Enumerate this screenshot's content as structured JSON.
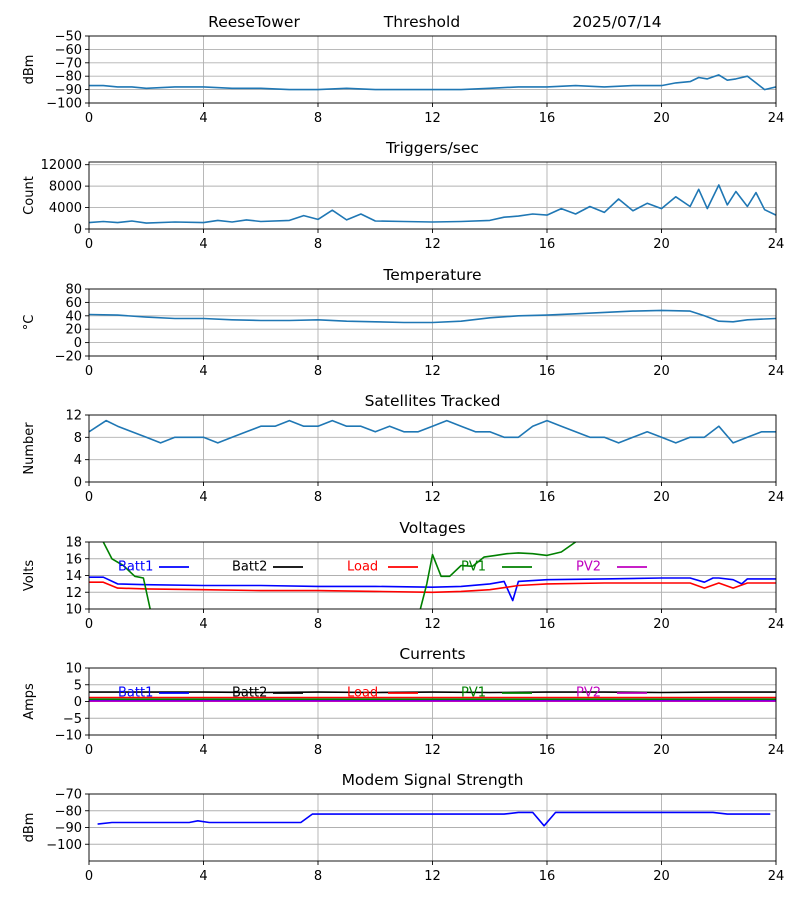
{
  "header": {
    "station": "ReeseTower",
    "mode": "Threshold",
    "date": "2025/07/14"
  },
  "chart_data": [
    {
      "id": "threshold",
      "type": "line",
      "title": "",
      "ylabel": "dBm",
      "xlim": [
        0,
        24
      ],
      "ylim": [
        -100,
        -50
      ],
      "xticks": [
        0,
        4,
        8,
        12,
        16,
        20,
        24
      ],
      "yticks": [
        -100,
        -90,
        -80,
        -70,
        -60,
        -50
      ],
      "grid": true,
      "series": [
        {
          "color": "#1f77b4",
          "x": [
            0,
            0.5,
            1,
            1.5,
            2,
            3,
            4,
            5,
            6,
            7,
            8,
            9,
            10,
            11,
            12,
            13,
            14,
            15,
            16,
            17,
            18,
            19,
            20,
            20.5,
            21,
            21.3,
            21.6,
            22,
            22.3,
            22.6,
            23,
            23.3,
            23.6,
            24
          ],
          "y": [
            -87,
            -87,
            -88,
            -88,
            -89,
            -88,
            -88,
            -89,
            -89,
            -90,
            -90,
            -89,
            -90,
            -90,
            -90,
            -90,
            -89,
            -88,
            -88,
            -87,
            -88,
            -87,
            -87,
            -85,
            -84,
            -81,
            -82,
            -79,
            -83,
            -82,
            -80,
            -85,
            -90,
            -88
          ]
        }
      ]
    },
    {
      "id": "triggers",
      "type": "line",
      "title": "Triggers/sec",
      "ylabel": "Count",
      "xlim": [
        0,
        24
      ],
      "ylim": [
        0,
        12500
      ],
      "xticks": [
        0,
        4,
        8,
        12,
        16,
        20,
        24
      ],
      "yticks": [
        0,
        4000,
        8000,
        12000
      ],
      "grid": true,
      "series": [
        {
          "color": "#1f77b4",
          "x": [
            0,
            0.5,
            1,
            1.5,
            2,
            3,
            4,
            4.5,
            5,
            5.5,
            6,
            7,
            7.5,
            8,
            8.5,
            9,
            9.5,
            10,
            11,
            12,
            13,
            14,
            14.5,
            15,
            15.5,
            16,
            16.5,
            17,
            17.5,
            18,
            18.5,
            19,
            19.5,
            20,
            20.5,
            21,
            21.3,
            21.6,
            22,
            22.3,
            22.6,
            23,
            23.3,
            23.6,
            24
          ],
          "y": [
            1200,
            1400,
            1200,
            1500,
            1100,
            1300,
            1200,
            1600,
            1300,
            1700,
            1400,
            1600,
            2500,
            1800,
            3500,
            1700,
            2800,
            1500,
            1400,
            1300,
            1400,
            1600,
            2200,
            2400,
            2800,
            2600,
            3800,
            2800,
            4200,
            3100,
            5600,
            3400,
            4800,
            3800,
            6000,
            4200,
            7400,
            3800,
            8200,
            4500,
            7000,
            4200,
            6800,
            3600,
            2600
          ]
        }
      ]
    },
    {
      "id": "temperature",
      "type": "line",
      "title": "Temperature",
      "ylabel": "°C",
      "xlim": [
        0,
        24
      ],
      "ylim": [
        -20,
        80
      ],
      "xticks": [
        0,
        4,
        8,
        12,
        16,
        20,
        24
      ],
      "yticks": [
        -20,
        0,
        20,
        40,
        60,
        80
      ],
      "grid": true,
      "series": [
        {
          "color": "#1f77b4",
          "x": [
            0,
            1,
            2,
            3,
            4,
            5,
            6,
            7,
            8,
            9,
            10,
            11,
            12,
            13,
            14,
            15,
            16,
            17,
            18,
            19,
            20,
            21,
            21.5,
            22,
            22.5,
            23,
            24
          ],
          "y": [
            42,
            41,
            38,
            36,
            36,
            34,
            33,
            33,
            34,
            32,
            31,
            30,
            30,
            32,
            37,
            40,
            41,
            43,
            45,
            47,
            48,
            47,
            40,
            32,
            31,
            34,
            36
          ]
        }
      ]
    },
    {
      "id": "satellites",
      "type": "line",
      "title": "Satellites Tracked",
      "ylabel": "Number",
      "xlim": [
        0,
        24
      ],
      "ylim": [
        0,
        12
      ],
      "xticks": [
        0,
        4,
        8,
        12,
        16,
        20,
        24
      ],
      "yticks": [
        0,
        4,
        8,
        12
      ],
      "grid": true,
      "series": [
        {
          "color": "#1f77b4",
          "x": [
            0,
            0.3,
            0.6,
            1,
            1.5,
            2,
            2.5,
            3,
            3.5,
            4,
            4.5,
            5,
            5.5,
            6,
            6.5,
            7,
            7.5,
            8,
            8.5,
            9,
            9.5,
            10,
            10.5,
            11,
            11.5,
            12,
            12.5,
            13,
            13.5,
            14,
            14.5,
            15,
            15.5,
            16,
            16.5,
            17,
            17.5,
            18,
            18.5,
            19,
            19.5,
            20,
            20.5,
            21,
            21.5,
            22,
            22.5,
            23,
            23.5,
            24
          ],
          "y": [
            9,
            10,
            11,
            10,
            9,
            8,
            7,
            8,
            8,
            8,
            7,
            8,
            9,
            10,
            10,
            11,
            10,
            10,
            11,
            10,
            10,
            9,
            10,
            9,
            9,
            10,
            11,
            10,
            9,
            9,
            8,
            8,
            10,
            11,
            10,
            9,
            8,
            8,
            7,
            8,
            9,
            8,
            7,
            8,
            8,
            10,
            7,
            8,
            9,
            9
          ]
        }
      ]
    },
    {
      "id": "voltages",
      "type": "line",
      "title": "Voltages",
      "ylabel": "Volts",
      "xlim": [
        0,
        24
      ],
      "ylim": [
        10,
        18
      ],
      "xticks": [
        0,
        4,
        8,
        12,
        16,
        20,
        24
      ],
      "yticks": [
        10,
        12,
        14,
        16,
        18
      ],
      "grid": true,
      "legend": "top",
      "series": [
        {
          "name": "Batt1",
          "color": "#0000ff",
          "x": [
            0,
            0.5,
            1,
            2,
            4,
            6,
            8,
            10,
            12,
            13,
            14,
            14.5,
            14.8,
            15,
            16,
            18,
            20,
            21,
            21.5,
            21.8,
            22,
            22.5,
            22.8,
            23,
            24
          ],
          "y": [
            13.8,
            13.8,
            13.0,
            12.9,
            12.8,
            12.8,
            12.7,
            12.7,
            12.6,
            12.7,
            13.0,
            13.3,
            11.0,
            13.3,
            13.5,
            13.6,
            13.7,
            13.7,
            13.2,
            13.7,
            13.7,
            13.5,
            13.0,
            13.6,
            13.6
          ]
        },
        {
          "name": "Batt2",
          "color": "#000000",
          "x": [],
          "y": []
        },
        {
          "name": "Load",
          "color": "#ff0000",
          "x": [
            0,
            0.5,
            1,
            2,
            4,
            6,
            8,
            10,
            12,
            13,
            14,
            15,
            16,
            18,
            20,
            21,
            21.5,
            22,
            22.5,
            23,
            24
          ],
          "y": [
            13.2,
            13.2,
            12.5,
            12.4,
            12.3,
            12.2,
            12.2,
            12.1,
            12.0,
            12.1,
            12.3,
            12.8,
            13.0,
            13.1,
            13.1,
            13.1,
            12.5,
            13.1,
            12.5,
            13.1,
            13.1
          ]
        },
        {
          "name": "PV1",
          "color": "#008000",
          "x": [
            0.5,
            0.8,
            1.2,
            1.6,
            1.9,
            2.2,
            11.5,
            11.8,
            12,
            12.3,
            12.6,
            13,
            13.4,
            13.8,
            14.2,
            14.6,
            15,
            15.5,
            16,
            16.5,
            17
          ],
          "y": [
            18,
            16.0,
            15.2,
            13.9,
            13.7,
            9.0,
            9.0,
            13.0,
            16.5,
            13.9,
            13.9,
            15.2,
            15.1,
            16.2,
            16.4,
            16.6,
            16.7,
            16.6,
            16.4,
            16.8,
            18
          ]
        },
        {
          "name": "PV2",
          "color": "#bf00bf",
          "x": [],
          "y": []
        }
      ]
    },
    {
      "id": "currents",
      "type": "line",
      "title": "Currents",
      "ylabel": "Amps",
      "xlim": [
        0,
        24
      ],
      "ylim": [
        -10,
        10
      ],
      "xticks": [
        0,
        4,
        8,
        12,
        16,
        20,
        24
      ],
      "yticks": [
        -10,
        -5,
        0,
        5,
        10
      ],
      "grid": true,
      "legend": "top",
      "series": [
        {
          "name": "Batt1",
          "color": "#0000ff",
          "x": [
            0,
            24
          ],
          "y": [
            0.2,
            0.2
          ]
        },
        {
          "name": "Batt2",
          "color": "#000000",
          "x": [
            0,
            2,
            4,
            6,
            8,
            10,
            12,
            14,
            16,
            18,
            20,
            22,
            24
          ],
          "y": [
            2.8,
            2.8,
            2.8,
            2.7,
            2.8,
            2.7,
            2.8,
            2.7,
            2.8,
            2.8,
            2.7,
            2.8,
            2.8
          ]
        },
        {
          "name": "Load",
          "color": "#ff0000",
          "x": [
            0,
            24
          ],
          "y": [
            1.2,
            1.2
          ]
        },
        {
          "name": "PV1",
          "color": "#008000",
          "x": [
            0,
            24
          ],
          "y": [
            0.7,
            0.7
          ]
        },
        {
          "name": "PV2",
          "color": "#bf00bf",
          "x": [
            0,
            24
          ],
          "y": [
            0.1,
            0.1
          ]
        }
      ]
    },
    {
      "id": "modem",
      "type": "line",
      "title": "Modem Signal Strength",
      "ylabel": "dBm",
      "xlim": [
        0,
        24
      ],
      "ylim": [
        -110,
        -70
      ],
      "xticks": [
        0,
        4,
        8,
        12,
        16,
        20,
        24
      ],
      "yticks": [
        -100,
        -90,
        -80,
        -70
      ],
      "grid": true,
      "series": [
        {
          "color": "#0000ff",
          "x": [
            0.3,
            0.8,
            3.5,
            3.8,
            4.2,
            7.4,
            7.8,
            14.5,
            15,
            15.5,
            15.9,
            16.3,
            21.8,
            22.3,
            23.8
          ],
          "y": [
            -88,
            -87,
            -87,
            -86,
            -87,
            -87,
            -82,
            -82,
            -81,
            -81,
            -89,
            -81,
            -81,
            -82,
            -82
          ]
        }
      ]
    }
  ]
}
